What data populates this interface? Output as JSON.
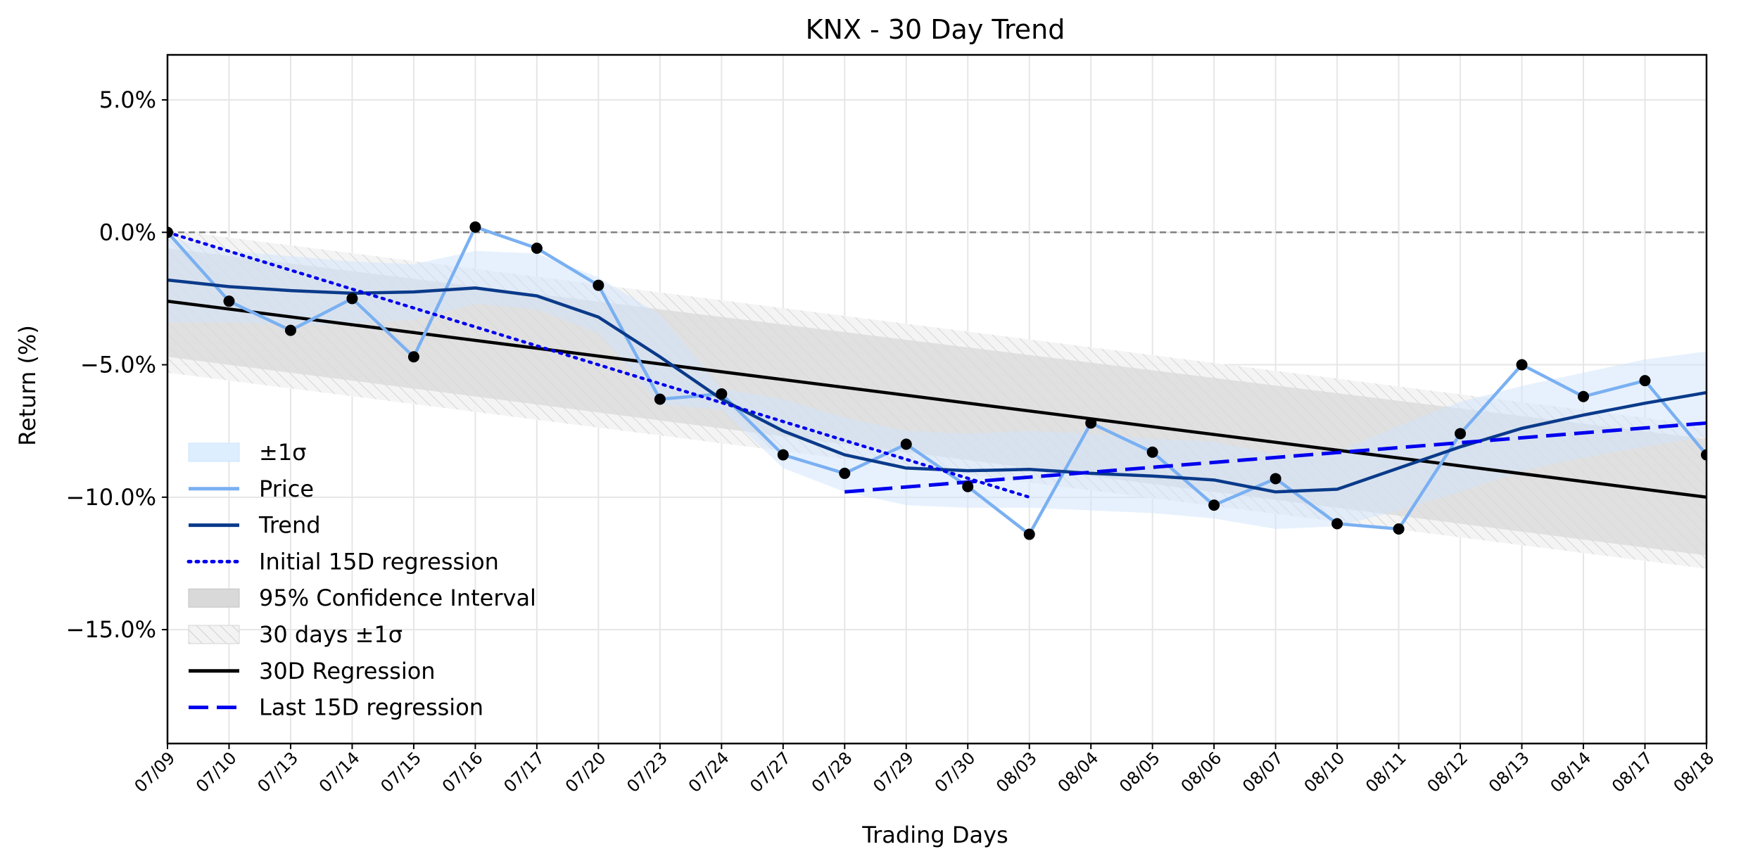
{
  "chart_data": {
    "type": "line",
    "title": "KNX - 30 Day Trend",
    "xlabel": "Trading Days",
    "ylabel": "Return (%)",
    "ylim": [
      -19.3,
      6.7
    ],
    "yticks": [
      5,
      0,
      -5,
      -10,
      -15
    ],
    "ytick_labels": [
      "5.0%",
      "0.0%",
      "−5.0%",
      "−10.0%",
      "−15.0%"
    ],
    "grid": true,
    "legend_position": "lower-left",
    "categories": [
      "07/09",
      "07/10",
      "07/13",
      "07/14",
      "07/15",
      "07/16",
      "07/17",
      "07/20",
      "07/23",
      "07/24",
      "07/27",
      "07/28",
      "07/29",
      "07/30",
      "08/03",
      "08/04",
      "08/05",
      "08/06",
      "08/07",
      "08/10",
      "08/11",
      "08/12",
      "08/13",
      "08/14",
      "08/17",
      "08/18"
    ],
    "series": [
      {
        "name": "Price",
        "type": "line",
        "color": "#7ab0f2",
        "values": [
          0.0,
          -2.6,
          -3.7,
          -2.5,
          -4.7,
          0.2,
          -0.6,
          -2.0,
          -6.3,
          -6.1,
          -8.4,
          -9.1,
          -8.0,
          -9.6,
          -11.4,
          -7.2,
          -8.3,
          -10.3,
          -9.3,
          -11.0,
          -11.2,
          -7.6,
          -5.0,
          -6.2,
          -5.6,
          -8.4
        ]
      },
      {
        "name": "Trend",
        "type": "line",
        "color": "#0a3a8a",
        "values": [
          -1.8,
          -2.05,
          -2.2,
          -2.3,
          -2.25,
          -2.1,
          -2.4,
          -3.2,
          -4.7,
          -6.3,
          -7.5,
          -8.4,
          -8.9,
          -9.0,
          -8.95,
          -9.1,
          -9.2,
          -9.35,
          -9.8,
          -9.7,
          -8.9,
          -8.1,
          -7.4,
          -6.9,
          -6.45,
          -6.05
        ]
      },
      {
        "name": "±1σ",
        "type": "band",
        "color": "#ddeeff",
        "lower": [
          -3.4,
          -3.4,
          -3.5,
          -3.45,
          -3.3,
          -2.7,
          -2.9,
          -3.8,
          -6.5,
          -6.7,
          -8.9,
          -9.8,
          -10.3,
          -10.4,
          -10.4,
          -10.5,
          -10.6,
          -10.8,
          -11.2,
          -11.1,
          -10.5,
          -9.8,
          -9.0,
          -8.5,
          -8.1,
          -7.7
        ],
        "upper": [
          -0.2,
          -0.7,
          -0.9,
          -1.1,
          -1.2,
          -0.7,
          -0.8,
          -1.7,
          -3.1,
          -5.9,
          -6.3,
          -7.0,
          -7.5,
          -7.6,
          -7.5,
          -7.6,
          -7.8,
          -7.9,
          -8.4,
          -8.3,
          -7.3,
          -6.4,
          -5.8,
          -5.3,
          -4.8,
          -4.5
        ]
      },
      {
        "name": "Initial 15D regression",
        "type": "line",
        "color": "#0000ee",
        "x": [
          "07/09",
          "08/03"
        ],
        "values": [
          0.0,
          -10.0
        ]
      },
      {
        "name": "95% Confidence Interval",
        "type": "band",
        "color": "#d9d9d9",
        "x": [
          "07/09",
          "08/18"
        ],
        "lower": [
          -4.7,
          -12.2
        ],
        "upper": [
          -0.6,
          -7.8
        ]
      },
      {
        "name": "30 days ±1σ",
        "type": "band",
        "color": "#eeeeee",
        "x": [
          "07/09",
          "08/18"
        ],
        "lower": [
          -5.3,
          -12.7
        ],
        "upper": [
          0.1,
          -7.3
        ]
      },
      {
        "name": "30D Regression",
        "type": "line",
        "color": "#000000",
        "x": [
          "07/09",
          "08/18"
        ],
        "values": [
          -2.6,
          -10.0
        ]
      },
      {
        "name": "Last 15D regression",
        "type": "line",
        "color": "#0000ee",
        "x": [
          "07/28",
          "08/18"
        ],
        "values": [
          -9.8,
          -7.2
        ]
      }
    ],
    "reference_line": {
      "y": 0.0,
      "color": "#808080"
    },
    "legend": [
      {
        "label": "±1σ",
        "kind": "band-light"
      },
      {
        "label": "Price",
        "kind": "line-price"
      },
      {
        "label": "Trend",
        "kind": "line-trend"
      },
      {
        "label": "Initial 15D regression",
        "kind": "line-dotted"
      },
      {
        "label": "95% Confidence Interval",
        "kind": "band-grey"
      },
      {
        "label": "30 days ±1σ",
        "kind": "band-hatch"
      },
      {
        "label": "30D Regression",
        "kind": "line-black"
      },
      {
        "label": "Last 15D regression",
        "kind": "line-dashed"
      }
    ]
  }
}
